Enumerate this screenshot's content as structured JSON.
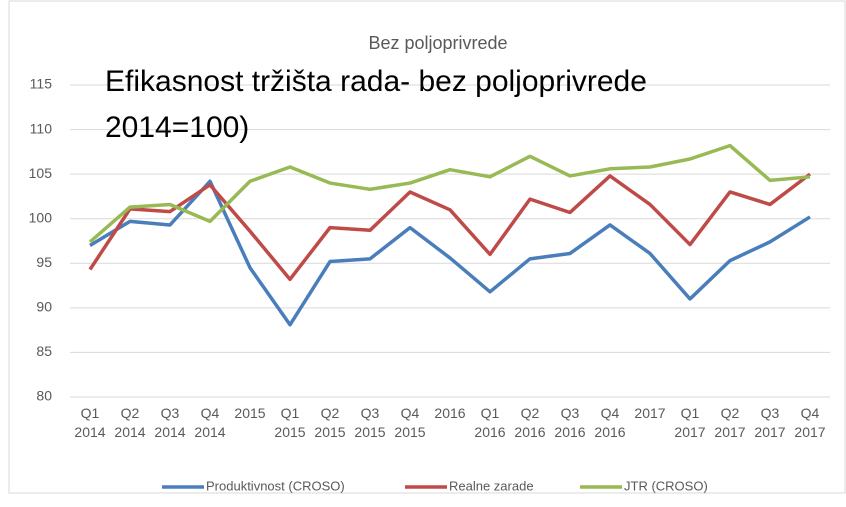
{
  "chart_data": {
    "type": "line",
    "title": "Bez poljoprivrede",
    "annotations": [
      "Efikasnost tržišta rada- bez poljoprivrede",
      "2014=100)"
    ],
    "categories": [
      "Q1 2014",
      "Q2 2014",
      "Q3 2014",
      "Q4 2014",
      "2015",
      "Q1 2015",
      "Q2 2015",
      "Q3 2015",
      "Q4 2015",
      "2016",
      "Q1 2016",
      "Q2 2016",
      "Q3 2016",
      "Q4 2016",
      "2017",
      "Q1 2017",
      "Q2 2017",
      "Q3 2017",
      "Q4 2017"
    ],
    "series": [
      {
        "name": "Produktivnost (CROSO)",
        "color": "#4a7ebb",
        "values": [
          97,
          99.7,
          99.3,
          104.2,
          94.5,
          88.1,
          95.2,
          95.5,
          99,
          95.6,
          91.8,
          95.5,
          96.1,
          99.3,
          96.1,
          91,
          95.3,
          97.4,
          100.2
        ]
      },
      {
        "name": "Realne zarade",
        "color": "#be4b48",
        "values": [
          94.3,
          101.1,
          100.8,
          103.8,
          98.6,
          93.2,
          99,
          98.7,
          103,
          101,
          96,
          102.2,
          100.7,
          104.8,
          101.6,
          97.1,
          103,
          101.6,
          105
        ]
      },
      {
        "name": "JTR (CROSO)",
        "color": "#98b954",
        "values": [
          97.4,
          101.3,
          101.6,
          99.7,
          104.2,
          105.8,
          104,
          103.3,
          104,
          105.5,
          104.7,
          107,
          104.8,
          105.6,
          105.8,
          106.7,
          108.2,
          104.3,
          104.7
        ]
      }
    ],
    "ylim": [
      80,
      115
    ],
    "yticks": [
      80,
      85,
      90,
      95,
      100,
      105,
      110,
      115
    ],
    "grid": true,
    "legend": "bottom"
  }
}
